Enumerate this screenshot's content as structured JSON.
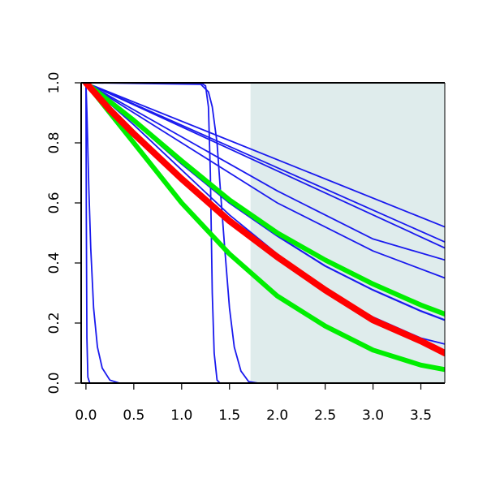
{
  "chart_data": {
    "type": "line",
    "title": "",
    "xlabel": "",
    "ylabel": "",
    "xlim": [
      -0.05,
      3.75
    ],
    "ylim": [
      0.0,
      1.0
    ],
    "x_ticks": [
      0.0,
      0.5,
      1.0,
      1.5,
      2.0,
      2.5,
      3.0,
      3.5
    ],
    "x_tick_labels": [
      "0.0",
      "0.5",
      "1.0",
      "1.5",
      "2.0",
      "2.5",
      "3.0",
      "3.5"
    ],
    "y_ticks": [
      0.0,
      0.2,
      0.4,
      0.6,
      0.8,
      1.0
    ],
    "y_tick_labels": [
      "0.0",
      "0.2",
      "0.4",
      "0.6",
      "0.8",
      "1.0"
    ],
    "grid": false,
    "legend": "none",
    "shaded_region": {
      "x_start": 1.72,
      "x_end": 3.75,
      "color": "#dfecec"
    },
    "colors": {
      "blue": "#1a1aee",
      "red": "#ff0000",
      "green": "#00ee00"
    },
    "series": [
      {
        "color": "blue",
        "width": 1.8,
        "points": [
          [
            0.0,
            1.0
          ],
          [
            0.004,
            0.55
          ],
          [
            0.01,
            0.15
          ],
          [
            0.02,
            0.02
          ],
          [
            0.04,
            0.0
          ],
          [
            3.75,
            0.0
          ]
        ]
      },
      {
        "color": "blue",
        "width": 1.8,
        "points": [
          [
            0.0,
            1.0
          ],
          [
            0.01,
            0.9
          ],
          [
            0.03,
            0.65
          ],
          [
            0.05,
            0.45
          ],
          [
            0.08,
            0.25
          ],
          [
            0.12,
            0.12
          ],
          [
            0.17,
            0.05
          ],
          [
            0.25,
            0.01
          ],
          [
            0.35,
            0.0
          ],
          [
            3.75,
            0.0
          ]
        ]
      },
      {
        "color": "blue",
        "width": 1.8,
        "points": [
          [
            0.0,
            1.0
          ],
          [
            1.2,
            1.0
          ],
          [
            1.25,
            0.99
          ],
          [
            1.28,
            0.92
          ],
          [
            1.3,
            0.7
          ],
          [
            1.31,
            0.5
          ],
          [
            1.32,
            0.3
          ],
          [
            1.34,
            0.1
          ],
          [
            1.37,
            0.01
          ],
          [
            1.4,
            0.0
          ],
          [
            3.75,
            0.0
          ]
        ]
      },
      {
        "color": "blue",
        "width": 1.8,
        "points": [
          [
            0.0,
            1.0
          ],
          [
            1.2,
            0.995
          ],
          [
            1.28,
            0.97
          ],
          [
            1.32,
            0.92
          ],
          [
            1.37,
            0.8
          ],
          [
            1.41,
            0.62
          ],
          [
            1.45,
            0.45
          ],
          [
            1.5,
            0.25
          ],
          [
            1.55,
            0.12
          ],
          [
            1.62,
            0.04
          ],
          [
            1.7,
            0.005
          ],
          [
            1.8,
            0.0
          ],
          [
            3.75,
            0.0
          ]
        ]
      },
      {
        "color": "blue",
        "width": 1.8,
        "points": [
          [
            0.0,
            1.0
          ],
          [
            3.75,
            0.52
          ]
        ]
      },
      {
        "color": "blue",
        "width": 1.8,
        "points": [
          [
            0.0,
            1.0
          ],
          [
            3.75,
            0.47
          ]
        ]
      },
      {
        "color": "blue",
        "width": 1.8,
        "points": [
          [
            0.0,
            1.0
          ],
          [
            3.75,
            0.45
          ]
        ]
      },
      {
        "color": "blue",
        "width": 1.8,
        "points": [
          [
            0.0,
            1.0
          ],
          [
            1.0,
            0.82
          ],
          [
            2.0,
            0.64
          ],
          [
            3.0,
            0.48
          ],
          [
            3.75,
            0.41
          ]
        ]
      },
      {
        "color": "blue",
        "width": 1.8,
        "points": [
          [
            0.0,
            1.0
          ],
          [
            1.0,
            0.8
          ],
          [
            2.0,
            0.6
          ],
          [
            3.0,
            0.44
          ],
          [
            3.75,
            0.35
          ]
        ]
      },
      {
        "color": "blue",
        "width": 2.2,
        "points": [
          [
            0.0,
            1.0
          ],
          [
            0.5,
            0.87
          ],
          [
            1.0,
            0.73
          ],
          [
            1.5,
            0.6
          ],
          [
            2.0,
            0.49
          ],
          [
            2.5,
            0.39
          ],
          [
            3.0,
            0.31
          ],
          [
            3.5,
            0.24
          ],
          [
            3.75,
            0.21
          ]
        ]
      },
      {
        "color": "blue",
        "width": 1.8,
        "points": [
          [
            0.0,
            1.0
          ],
          [
            0.5,
            0.86
          ],
          [
            1.0,
            0.71
          ],
          [
            1.5,
            0.56
          ],
          [
            2.0,
            0.43
          ],
          [
            2.5,
            0.31
          ],
          [
            3.0,
            0.22
          ],
          [
            3.5,
            0.15
          ],
          [
            3.75,
            0.13
          ]
        ]
      },
      {
        "color": "green",
        "width": 6,
        "points": [
          [
            0.0,
            1.0
          ],
          [
            0.5,
            0.875
          ],
          [
            1.0,
            0.74
          ],
          [
            1.5,
            0.61
          ],
          [
            2.0,
            0.5
          ],
          [
            2.5,
            0.41
          ],
          [
            3.0,
            0.33
          ],
          [
            3.5,
            0.26
          ],
          [
            3.75,
            0.23
          ]
        ]
      },
      {
        "color": "green",
        "width": 6,
        "points": [
          [
            0.0,
            1.0
          ],
          [
            0.5,
            0.8
          ],
          [
            1.0,
            0.6
          ],
          [
            1.5,
            0.43
          ],
          [
            2.0,
            0.29
          ],
          [
            2.5,
            0.19
          ],
          [
            3.0,
            0.11
          ],
          [
            3.5,
            0.06
          ],
          [
            3.75,
            0.045
          ]
        ]
      },
      {
        "color": "red",
        "width": 8,
        "points": [
          [
            0.0,
            1.0
          ],
          [
            0.25,
            0.91
          ],
          [
            0.5,
            0.83
          ],
          [
            1.0,
            0.68
          ],
          [
            1.5,
            0.54
          ],
          [
            2.0,
            0.42
          ],
          [
            2.5,
            0.31
          ],
          [
            3.0,
            0.21
          ],
          [
            3.5,
            0.14
          ],
          [
            3.75,
            0.1
          ]
        ]
      }
    ]
  }
}
